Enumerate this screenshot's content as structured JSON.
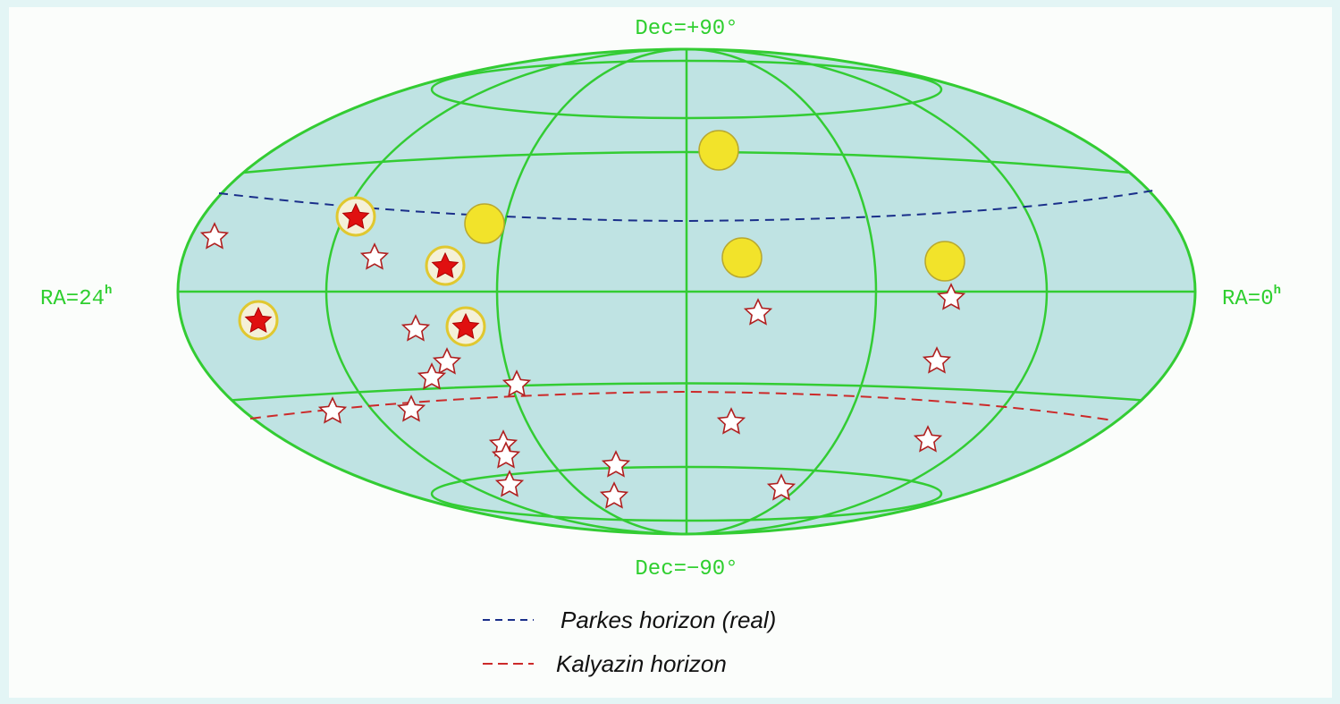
{
  "labels": {
    "dec_north": "Dec=+90°",
    "dec_south": "Dec=−90°",
    "ra_left": {
      "text": "RA=24",
      "sup": "h"
    },
    "ra_right": {
      "text": "RA=0",
      "sup": "h"
    }
  },
  "legend": [
    {
      "label": "Parkes horizon (real)"
    },
    {
      "label": "Kalyazin horizon"
    }
  ]
}
